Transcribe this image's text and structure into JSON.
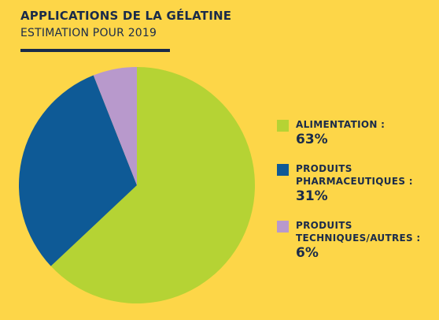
{
  "header": {
    "title": "APPLICATIONS DE LA GÉLATINE",
    "subtitle": "ESTIMATION POUR 2019"
  },
  "chart_data": {
    "type": "pie",
    "title": "APPLICATIONS DE LA GÉLATINE",
    "subtitle": "ESTIMATION POUR 2019",
    "legend_position": "right",
    "categories": [
      "ALIMENTATION :",
      "PRODUITS PHARMACEUTIQUES :",
      "PRODUITS TECHNIQUES/AUTRES :"
    ],
    "values": [
      63,
      31,
      6
    ],
    "value_labels": [
      "63%",
      "31%",
      "6%"
    ],
    "colors": [
      "#B5D334",
      "#0E5A96",
      "#B899CC"
    ]
  }
}
